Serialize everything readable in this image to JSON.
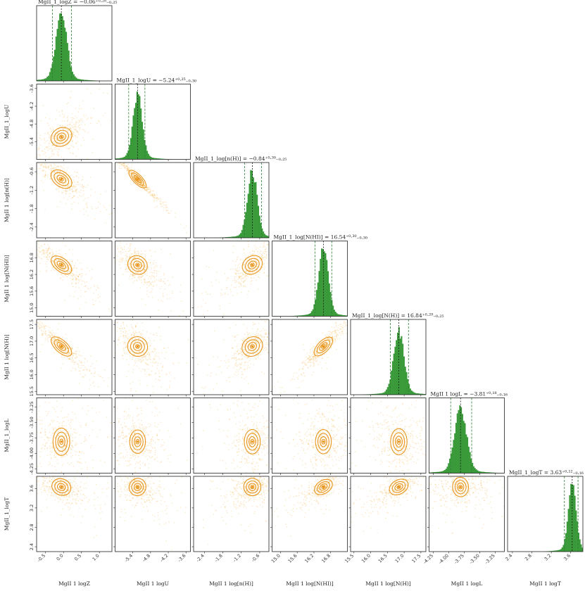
{
  "chart_data": {
    "type": "corner",
    "title": "",
    "parameters": [
      {
        "name": "MgII_1_logZ",
        "axis_label": "MgII 1 logZ",
        "row_label": "",
        "title": "MgII_1_logZ = −0.06⁺⁰·²⁸₋₀.₂₅",
        "median": -0.06,
        "plus": 0.28,
        "minus": 0.25,
        "range": [
          -0.75,
          1.35
        ],
        "ticks": [
          "-0.5",
          "0.0",
          "0.5",
          "1.0"
        ],
        "tick_values": [
          -0.5,
          0.0,
          0.5,
          1.0
        ]
      },
      {
        "name": "MgII_1_logU",
        "axis_label": "MgII 1 logU",
        "row_label": "MgII_1_logU",
        "title": "MgII_1_logU = −5.24⁺⁰·²⁵₋₀.₃₀",
        "median": -5.24,
        "plus": 0.25,
        "minus": 0.3,
        "range": [
          -6.0,
          -3.45
        ],
        "ticks": [
          "-5.4",
          "-4.8",
          "-4.2",
          "-3.6"
        ],
        "tick_values": [
          -5.4,
          -4.8,
          -4.2,
          -3.6
        ]
      },
      {
        "name": "MgII_1_log[n(H)]",
        "axis_label": "MgII 1 log[n(H)]",
        "row_label": "MgII 1 log[n(H)]",
        "title": "MgII_1_log[n(H)] = −0.84⁺⁰·³⁰₋₀.₂₅",
        "median": -0.84,
        "plus": 0.3,
        "minus": 0.25,
        "range": [
          -2.75,
          -0.3
        ],
        "ticks": [
          "-2.4",
          "-1.8",
          "-1.2",
          "-0.6"
        ],
        "tick_values": [
          -2.4,
          -1.8,
          -1.2,
          -0.6
        ]
      },
      {
        "name": "MgII_1_log[N(HI)]",
        "axis_label": "MgII 1 log[N(HI)]",
        "row_label": "MgII 1 log[N(HI)]",
        "title": "MgII_1_log[N(HI)] = 16.54⁺⁰·³⁰₋₀.₃₀",
        "median": 16.54,
        "plus": 0.3,
        "minus": 0.3,
        "range": [
          14.7,
          17.4
        ],
        "ticks": [
          "15.0",
          "15.6",
          "16.2",
          "16.8"
        ],
        "tick_values": [
          15.0,
          15.6,
          16.2,
          16.8
        ]
      },
      {
        "name": "MgII_1_log[N(H)]",
        "axis_label": "MgII 1 log[N(H)]",
        "row_label": "MgII 1 log[N(H)]",
        "title": "MgII_1_log[N(H)] = 16.84⁺⁰·²⁹₋₀.₂₅",
        "median": 16.84,
        "plus": 0.29,
        "minus": 0.25,
        "range": [
          15.4,
          17.65
        ],
        "ticks": [
          "15.5",
          "16.0",
          "16.5",
          "17.0",
          "17.5"
        ],
        "tick_values": [
          15.5,
          16.0,
          16.5,
          17.0,
          17.5
        ]
      },
      {
        "name": "MgII_1_logL",
        "axis_label": "MgII 1 logL",
        "row_label": "MgII_1_logL",
        "title": "MgII 1 logL = −3.81⁺⁰·¹⁸₋₀.₁₆",
        "median": -3.81,
        "plus": 0.18,
        "minus": 0.16,
        "range": [
          -4.32,
          -3.1
        ],
        "ticks": [
          "-4.25",
          "-4.00",
          "-3.75",
          "-3.50",
          "-3.25"
        ],
        "tick_values": [
          -4.25,
          -4.0,
          -3.75,
          -3.5,
          -3.25
        ]
      },
      {
        "name": "MgII_1_logT",
        "axis_label": "MgII 1 logT",
        "row_label": "MgII_1_logT",
        "title": "MgII_1_logT = 3.63⁺⁰·¹²₋₀.₁₆",
        "median": 3.63,
        "plus": 0.12,
        "minus": 0.16,
        "range": [
          2.3,
          3.85
        ],
        "ticks": [
          "2.4",
          "2.8",
          "3.2",
          "3.6"
        ],
        "tick_values": [
          2.4,
          2.8,
          3.2,
          3.6
        ]
      }
    ],
    "colors": {
      "histogram": "#3a9a3a",
      "scatter": "#f5a623",
      "contour": "#e8961e",
      "median_line": "#1a1a1a",
      "quantile_line": "#2e7d32",
      "quantile_line_light": "#8bc34a"
    }
  }
}
